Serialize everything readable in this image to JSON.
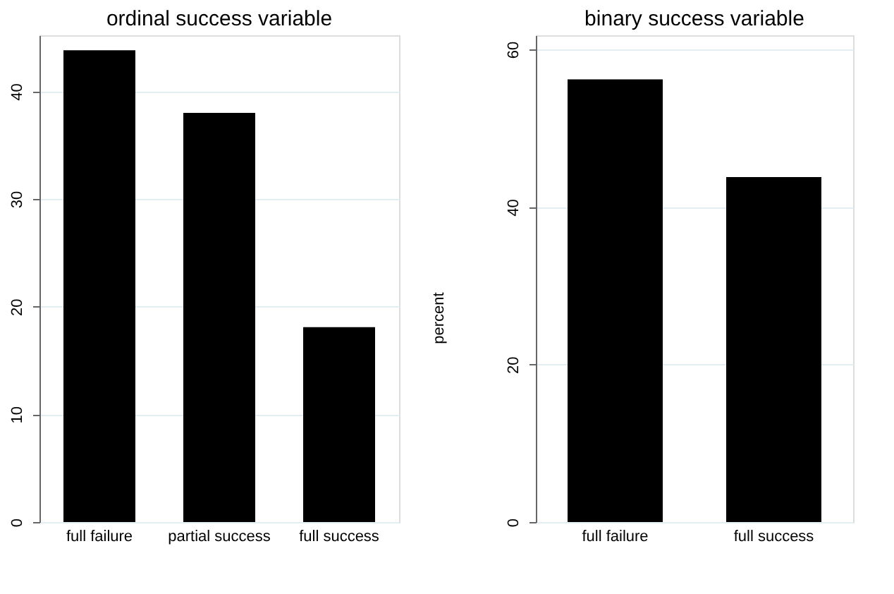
{
  "chart_data": [
    {
      "type": "bar",
      "title": "ordinal success variable",
      "categories": [
        "full failure",
        "partial success",
        "full success"
      ],
      "values": [
        43.8,
        38.0,
        18.1
      ],
      "color": "#000000",
      "ylim": [
        0,
        45.2
      ],
      "yticks": [
        0,
        10,
        20,
        30,
        40
      ],
      "grid": "y"
    },
    {
      "type": "bar",
      "title": "binary success variable",
      "ylabel": "percent",
      "categories": [
        "full failure",
        "full success"
      ],
      "values": [
        56.2,
        43.8
      ],
      "color": "#000000",
      "ylim": [
        0,
        61.8
      ],
      "yticks": [
        0,
        20,
        40,
        60
      ],
      "grid": "y"
    }
  ]
}
